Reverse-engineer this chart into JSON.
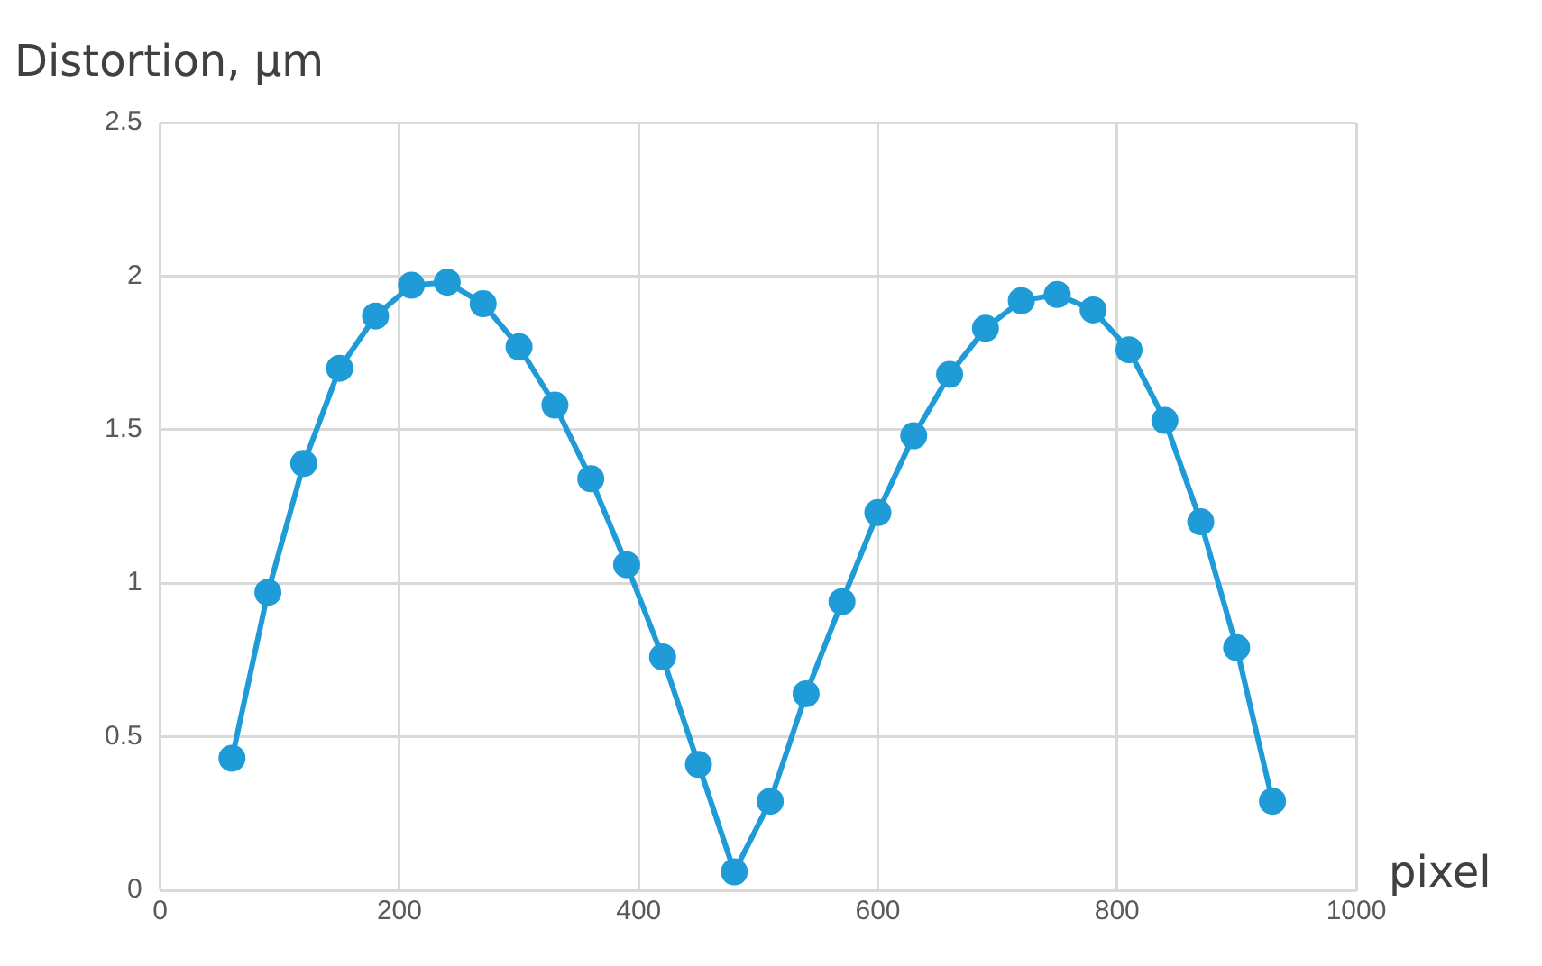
{
  "chart_data": {
    "type": "line",
    "xlabel": "pixel",
    "ylabel": "Distortion, µm",
    "x": [
      60,
      90,
      120,
      150,
      180,
      210,
      240,
      270,
      300,
      330,
      360,
      390,
      420,
      450,
      480,
      510,
      540,
      570,
      600,
      630,
      660,
      690,
      720,
      750,
      780,
      810,
      840,
      870,
      900,
      930
    ],
    "series": [
      {
        "color": "#1f9bd7",
        "values": [
          0.43,
          0.97,
          1.39,
          1.7,
          1.87,
          1.97,
          1.98,
          1.91,
          1.77,
          1.58,
          1.34,
          1.06,
          0.76,
          0.41,
          0.06,
          0.29,
          0.64,
          0.94,
          1.23,
          1.48,
          1.68,
          1.83,
          1.92,
          1.94,
          1.89,
          1.76,
          1.53,
          1.2,
          0.79,
          0.29
        ]
      }
    ],
    "xlim": [
      0,
      1000
    ],
    "xticks": [
      0,
      200,
      400,
      600,
      800,
      1000
    ],
    "ylim": [
      0,
      2.5
    ],
    "yticks": [
      0,
      0.5,
      1,
      1.5,
      2,
      2.5
    ],
    "grid": true,
    "legend": false,
    "marker": "circle",
    "line_style": "solid"
  }
}
